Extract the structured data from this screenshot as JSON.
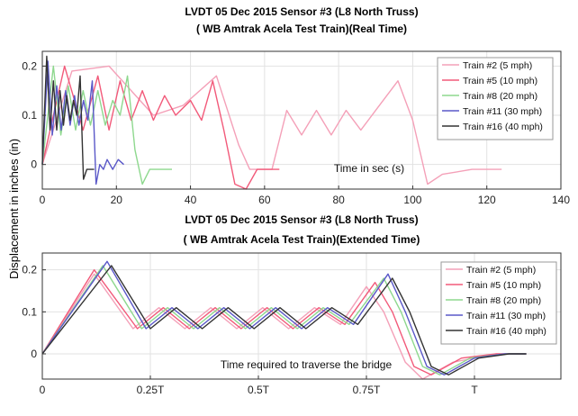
{
  "figure": {
    "ylabel": "Displacement in inches (in)"
  },
  "chart_data": [
    {
      "type": "line",
      "title": "LVDT  05 Dec 2015 Sensor #3 (L8 North Truss)",
      "subtitle": "( WB Amtrak Acela Test Train)(Real Time)",
      "xlabel": "",
      "ylabel": "Displacement in inches (in)",
      "annotation": "Time in sec (s)",
      "xlim": [
        0,
        140
      ],
      "ylim": [
        -0.05,
        0.23
      ],
      "x_ticks": [
        "0",
        "20",
        "40",
        "60",
        "80",
        "100",
        "120",
        "140"
      ],
      "x_tick_values": [
        0,
        20,
        40,
        60,
        80,
        100,
        120,
        140
      ],
      "y_ticks": [
        "0",
        "0.1",
        "0.2"
      ],
      "y_tick_values": [
        0,
        0.1,
        0.2
      ],
      "grid": true,
      "legend_position": "top-right",
      "series": [
        {
          "name": "Train #2 (5 mph)",
          "color": "#f4a0b8",
          "x": [
            0,
            8,
            18,
            30,
            38,
            47,
            53,
            56,
            62,
            66,
            70,
            74,
            78,
            82,
            86,
            91,
            96,
            100,
            104,
            108,
            116,
            124
          ],
          "y": [
            0,
            0.19,
            0.2,
            0.1,
            0.12,
            0.18,
            0.04,
            -0.01,
            -0.01,
            0.11,
            0.06,
            0.11,
            0.06,
            0.11,
            0.07,
            0.12,
            0.17,
            0.09,
            -0.04,
            -0.02,
            -0.01,
            -0.01
          ]
        },
        {
          "name": "Train #5 (10 mph)",
          "color": "#f25a7a",
          "x": [
            0,
            6,
            11,
            15,
            18,
            21,
            24,
            27,
            30,
            33,
            36,
            40,
            43,
            46,
            49,
            52,
            55,
            58,
            61,
            64
          ],
          "y": [
            0,
            0.2,
            0.07,
            0.18,
            0.07,
            0.17,
            0.09,
            0.15,
            0.09,
            0.14,
            0.1,
            0.13,
            0.09,
            0.17,
            0.07,
            -0.04,
            -0.05,
            -0.01,
            -0.01,
            -0.01
          ]
        },
        {
          "name": "Train #8 (20 mph)",
          "color": "#8ed88e",
          "x": [
            0,
            3,
            5,
            7,
            9,
            11,
            13,
            15,
            17,
            19,
            21,
            23,
            25,
            27,
            29,
            31,
            35
          ],
          "y": [
            0,
            0.2,
            0.06,
            0.16,
            0.07,
            0.15,
            0.08,
            0.15,
            0.08,
            0.13,
            0.1,
            0.18,
            0.03,
            -0.04,
            -0.01,
            -0.01,
            -0.01
          ]
        },
        {
          "name": "Train #11 (30 mph)",
          "color": "#5a58c8",
          "x": [
            0,
            1.5,
            2.7,
            3.9,
            5.1,
            6.3,
            7.5,
            8.7,
            9.9,
            11.1,
            12.3,
            13.5,
            14.5,
            15.5,
            16.5,
            17.5,
            19,
            20.5,
            22
          ],
          "y": [
            0,
            0.21,
            0.06,
            0.16,
            0.07,
            0.15,
            0.08,
            0.14,
            0.08,
            0.13,
            0.09,
            0.17,
            -0.04,
            0.0,
            -0.01,
            0.01,
            -0.01,
            0.01,
            0.0
          ]
        },
        {
          "name": "Train #16 (40 mph)",
          "color": "#333333",
          "x": [
            0,
            1.2,
            2.1,
            3.0,
            3.9,
            4.8,
            5.7,
            6.6,
            7.5,
            8.4,
            9.3,
            10.2,
            11.1,
            12.0,
            13.0,
            14.0
          ],
          "y": [
            0,
            0.22,
            0.07,
            0.17,
            0.07,
            0.15,
            0.08,
            0.14,
            0.09,
            0.13,
            0.1,
            0.18,
            -0.03,
            -0.01,
            -0.01,
            -0.01
          ]
        }
      ]
    },
    {
      "type": "line",
      "title": "LVDT  05 Dec 2015 Sensor #3 (L8 North Truss)",
      "subtitle": "( WB Amtrak Acela Test Train)(Extended Time)",
      "xlabel": "",
      "ylabel": "Displacement in inches (in)",
      "annotation": "Time required to traverse the bridge",
      "xlim": [
        0,
        1.2
      ],
      "ylim": [
        -0.06,
        0.24
      ],
      "x_ticks": [
        "0",
        "0.25T",
        "0.5T",
        "0.75T",
        "T"
      ],
      "x_tick_values": [
        0,
        0.25,
        0.5,
        0.75,
        1.0
      ],
      "y_ticks": [
        "0",
        "0.1",
        "0.2"
      ],
      "y_tick_values": [
        0,
        0.1,
        0.2
      ],
      "grid": true,
      "legend_position": "top-right",
      "series": [
        {
          "name": "Train #2 (5 mph)",
          "color": "#f4a0b8",
          "x": [
            0,
            0.12,
            0.21,
            0.27,
            0.33,
            0.39,
            0.45,
            0.51,
            0.57,
            0.63,
            0.69,
            0.75,
            0.79,
            0.84,
            0.88,
            0.95,
            1.05,
            1.12
          ],
          "y": [
            0,
            0.19,
            0.06,
            0.11,
            0.06,
            0.11,
            0.06,
            0.11,
            0.06,
            0.11,
            0.07,
            0.16,
            0.1,
            -0.02,
            -0.06,
            -0.02,
            0.0,
            0.0
          ]
        },
        {
          "name": "Train #5 (10 mph)",
          "color": "#f25a7a",
          "x": [
            0,
            0.12,
            0.22,
            0.28,
            0.34,
            0.4,
            0.46,
            0.52,
            0.58,
            0.64,
            0.7,
            0.77,
            0.81,
            0.86,
            0.9,
            0.97,
            1.05,
            1.12
          ],
          "y": [
            0,
            0.2,
            0.06,
            0.11,
            0.06,
            0.11,
            0.06,
            0.11,
            0.06,
            0.11,
            0.07,
            0.17,
            0.1,
            -0.03,
            -0.05,
            -0.01,
            0.0,
            0.0
          ]
        },
        {
          "name": "Train #8 (20 mph)",
          "color": "#8ed88e",
          "x": [
            0,
            0.14,
            0.23,
            0.29,
            0.35,
            0.41,
            0.47,
            0.53,
            0.59,
            0.65,
            0.71,
            0.79,
            0.83,
            0.88,
            0.92,
            0.99,
            1.07,
            1.12
          ],
          "y": [
            0,
            0.21,
            0.06,
            0.11,
            0.06,
            0.11,
            0.06,
            0.11,
            0.06,
            0.11,
            0.07,
            0.18,
            0.1,
            -0.03,
            -0.05,
            -0.01,
            0.0,
            0.0
          ]
        },
        {
          "name": "Train #11 (30 mph)",
          "color": "#5a58c8",
          "x": [
            0,
            0.15,
            0.24,
            0.3,
            0.36,
            0.42,
            0.48,
            0.54,
            0.6,
            0.66,
            0.72,
            0.8,
            0.84,
            0.89,
            0.93,
            1.0,
            1.07,
            1.12
          ],
          "y": [
            0,
            0.22,
            0.06,
            0.11,
            0.06,
            0.11,
            0.06,
            0.11,
            0.06,
            0.11,
            0.07,
            0.19,
            0.1,
            -0.03,
            -0.05,
            -0.01,
            0.0,
            0.0
          ]
        },
        {
          "name": "Train #16 (40 mph)",
          "color": "#333333",
          "x": [
            0,
            0.16,
            0.25,
            0.31,
            0.37,
            0.43,
            0.49,
            0.55,
            0.61,
            0.67,
            0.73,
            0.81,
            0.85,
            0.9,
            0.94,
            1.01,
            1.08,
            1.12
          ],
          "y": [
            0,
            0.21,
            0.06,
            0.11,
            0.06,
            0.11,
            0.06,
            0.11,
            0.06,
            0.11,
            0.07,
            0.18,
            0.1,
            -0.03,
            -0.05,
            -0.01,
            0.0,
            0.0
          ]
        }
      ]
    }
  ]
}
